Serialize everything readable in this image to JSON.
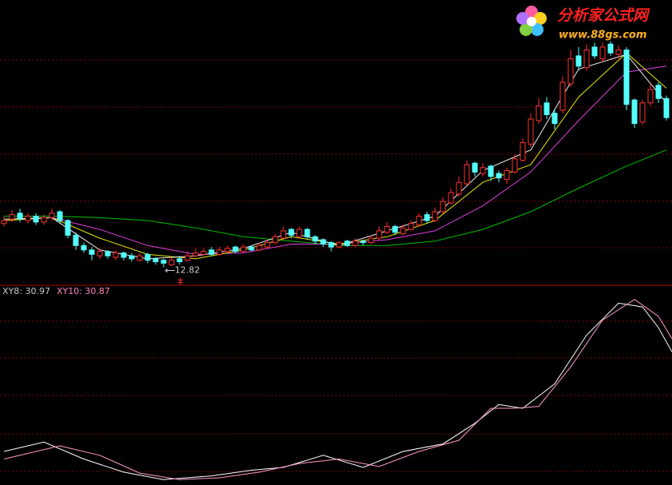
{
  "logo": {
    "name": "分析家公式网",
    "url": "www.88gs.com"
  },
  "chart_data": [
    {
      "type": "candlestick",
      "xlim": [
        -0.5,
        83.7
      ],
      "ylim": [
        11.6,
        31
      ],
      "up_color": "#ff3232",
      "down_color": "#54ffff",
      "open": [
        15.8,
        16.1,
        16.5,
        16.0,
        16.3,
        15.9,
        16.2,
        16.6,
        16.0,
        15.0,
        14.3,
        14.0,
        13.6,
        13.9,
        13.5,
        13.8,
        13.6,
        13.3,
        13.7,
        13.4,
        13.3,
        13.0,
        13.4,
        13.3,
        13.6,
        13.7,
        14.0,
        13.7,
        13.9,
        14.2,
        13.9,
        14.2,
        14.0,
        14.2,
        14.5,
        14.8,
        15.4,
        14.9,
        15.4,
        14.9,
        14.7,
        14.5,
        14.2,
        14.6,
        14.3,
        14.6,
        14.5,
        14.8,
        15.2,
        15.6,
        15.1,
        15.4,
        15.7,
        16.4,
        16.0,
        16.6,
        17.2,
        17.8,
        18.5,
        19.9,
        19.2,
        19.7,
        19.2,
        18.8,
        19.3,
        20.1,
        21.2,
        22.8,
        24.0,
        23.3,
        23.5,
        25.3,
        27.2,
        26.4,
        27.8,
        27.0,
        28.0,
        27.3,
        27.6,
        24.2,
        22.7,
        24.0,
        25.2,
        24.3
      ],
      "high": [
        16.3,
        16.7,
        16.8,
        16.5,
        16.5,
        16.4,
        16.8,
        16.7,
        16.1,
        15.2,
        14.5,
        14.2,
        14.1,
        14.0,
        14.0,
        13.9,
        13.8,
        13.8,
        13.8,
        13.5,
        13.4,
        13.5,
        13.6,
        13.9,
        14.1,
        14.1,
        14.2,
        14.2,
        14.3,
        14.3,
        14.4,
        14.3,
        14.5,
        14.7,
        15.1,
        15.6,
        15.5,
        15.6,
        15.5,
        15.0,
        14.8,
        14.6,
        14.6,
        14.7,
        14.8,
        14.7,
        15.0,
        15.6,
        15.9,
        15.7,
        15.7,
        16.0,
        16.5,
        16.6,
        16.9,
        17.6,
        18.2,
        19.0,
        20.1,
        20.0,
        19.9,
        19.8,
        19.4,
        19.6,
        20.5,
        21.6,
        23.3,
        24.3,
        24.4,
        23.6,
        25.8,
        27.6,
        27.8,
        28.0,
        28.1,
        28.1,
        28.2,
        27.9,
        27.8,
        24.3,
        24.2,
        25.3,
        25.4,
        24.5
      ],
      "low": [
        15.6,
        15.9,
        15.9,
        15.8,
        15.7,
        15.7,
        16.0,
        15.8,
        14.8,
        14.0,
        13.8,
        13.3,
        13.4,
        13.4,
        13.3,
        13.3,
        13.2,
        13.2,
        13.1,
        13.0,
        12.82,
        12.9,
        13.0,
        13.2,
        13.5,
        13.6,
        13.6,
        13.6,
        13.8,
        13.8,
        13.8,
        13.9,
        13.9,
        14.1,
        14.4,
        14.7,
        14.8,
        14.8,
        14.7,
        14.4,
        14.2,
        13.9,
        14.1,
        14.2,
        14.2,
        14.3,
        14.4,
        14.7,
        15.1,
        15.0,
        15.0,
        15.3,
        15.6,
        15.8,
        15.9,
        16.5,
        17.1,
        17.6,
        18.4,
        19.0,
        19.0,
        18.7,
        18.6,
        18.5,
        19.2,
        20.0,
        21.0,
        22.6,
        22.9,
        22.2,
        23.3,
        25.1,
        26.2,
        26.2,
        27.0,
        26.8,
        27.2,
        27.0,
        23.5,
        22.3,
        22.5,
        23.8,
        24.0,
        22.8
      ],
      "close": [
        16.0,
        16.4,
        16.1,
        16.3,
        15.9,
        16.2,
        16.5,
        16.0,
        15.0,
        14.3,
        14.0,
        13.7,
        13.9,
        13.6,
        13.8,
        13.5,
        13.4,
        13.6,
        13.3,
        13.2,
        13.1,
        13.3,
        13.2,
        13.6,
        13.8,
        13.9,
        13.7,
        14.0,
        14.1,
        13.9,
        14.2,
        14.0,
        14.3,
        14.5,
        14.9,
        15.3,
        15.0,
        15.4,
        14.9,
        14.6,
        14.4,
        14.2,
        14.5,
        14.3,
        14.6,
        14.5,
        14.8,
        15.3,
        15.6,
        15.2,
        15.5,
        15.8,
        16.3,
        16.0,
        16.6,
        17.3,
        17.9,
        18.6,
        19.8,
        19.3,
        19.6,
        19.0,
        18.9,
        19.4,
        20.2,
        21.3,
        22.9,
        23.8,
        23.2,
        22.6,
        25.4,
        27.0,
        26.5,
        27.6,
        27.2,
        27.8,
        27.4,
        27.6,
        23.9,
        22.6,
        24.0,
        24.9,
        24.3,
        23.0
      ],
      "lines": [
        {
          "color": "#00c000",
          "x": [
            0,
            6,
            12,
            18,
            24,
            30,
            36,
            42,
            48,
            54,
            60,
            66,
            72,
            78,
            83
          ],
          "values": [
            16.3,
            16.3,
            16.2,
            16.0,
            15.5,
            14.9,
            14.6,
            14.3,
            14.3,
            14.6,
            15.4,
            16.6,
            18.2,
            19.7,
            20.8
          ]
        },
        {
          "color": "#e040e0",
          "x": [
            0,
            6,
            12,
            18,
            24,
            30,
            36,
            42,
            48,
            54,
            60,
            66,
            72,
            78,
            83
          ],
          "values": [
            16.0,
            16.2,
            15.4,
            14.3,
            13.7,
            13.8,
            14.4,
            14.4,
            14.7,
            15.3,
            17.0,
            19.3,
            22.8,
            26.1,
            26.5
          ]
        },
        {
          "color": "#e8e800",
          "x": [
            0,
            6,
            12,
            18,
            24,
            30,
            36,
            42,
            48,
            54,
            60,
            66,
            72,
            78,
            83
          ],
          "values": [
            16.0,
            16.2,
            14.8,
            13.7,
            13.4,
            14.0,
            14.9,
            14.4,
            14.9,
            16.0,
            18.6,
            19.8,
            24.4,
            27.4,
            25.0
          ]
        },
        {
          "color": "#f0f0f0",
          "x": [
            0,
            6,
            12,
            18,
            24,
            30,
            36,
            42,
            48,
            54,
            60,
            66,
            72,
            78,
            83
          ],
          "values": [
            16.1,
            16.2,
            14.0,
            13.4,
            13.6,
            14.1,
            15.2,
            14.3,
            15.3,
            16.3,
            19.4,
            20.8,
            26.3,
            27.3,
            24.0
          ]
        }
      ]
    },
    {
      "type": "line",
      "xlim": [
        -0.5,
        83.7
      ],
      "ylim": [
        0,
        100
      ],
      "readout": [
        30.97,
        30.87
      ],
      "readout_labels": [
        "XY8: 30.97",
        "XY10: 30.87"
      ],
      "readout_colors": [
        "#c8c8c8",
        "#ff80c0"
      ],
      "series": [
        {
          "name": "XY8",
          "color": "#ffffff",
          "x": [
            0,
            5,
            10,
            15,
            20,
            26,
            31,
            35,
            40,
            45,
            50,
            55,
            59,
            62,
            65,
            69,
            73,
            77,
            80,
            82,
            83.7
          ],
          "values": [
            17,
            22,
            13,
            6,
            2,
            4,
            7,
            8.5,
            15,
            8.5,
            17,
            21,
            32,
            42,
            40,
            53,
            79,
            96,
            94,
            83,
            70
          ]
        },
        {
          "name": "XY10",
          "color": "#ff99cc",
          "x": [
            0,
            7,
            12,
            17,
            22,
            27,
            32,
            37,
            42,
            47,
            52,
            57,
            61,
            64,
            67,
            71,
            75,
            79,
            82,
            83.7
          ],
          "values": [
            13,
            20,
            15,
            5.5,
            2,
            3,
            6,
            10.6,
            13,
            9,
            17,
            23,
            40,
            40,
            41,
            62,
            87,
            98,
            89,
            77
          ]
        }
      ]
    }
  ]
}
